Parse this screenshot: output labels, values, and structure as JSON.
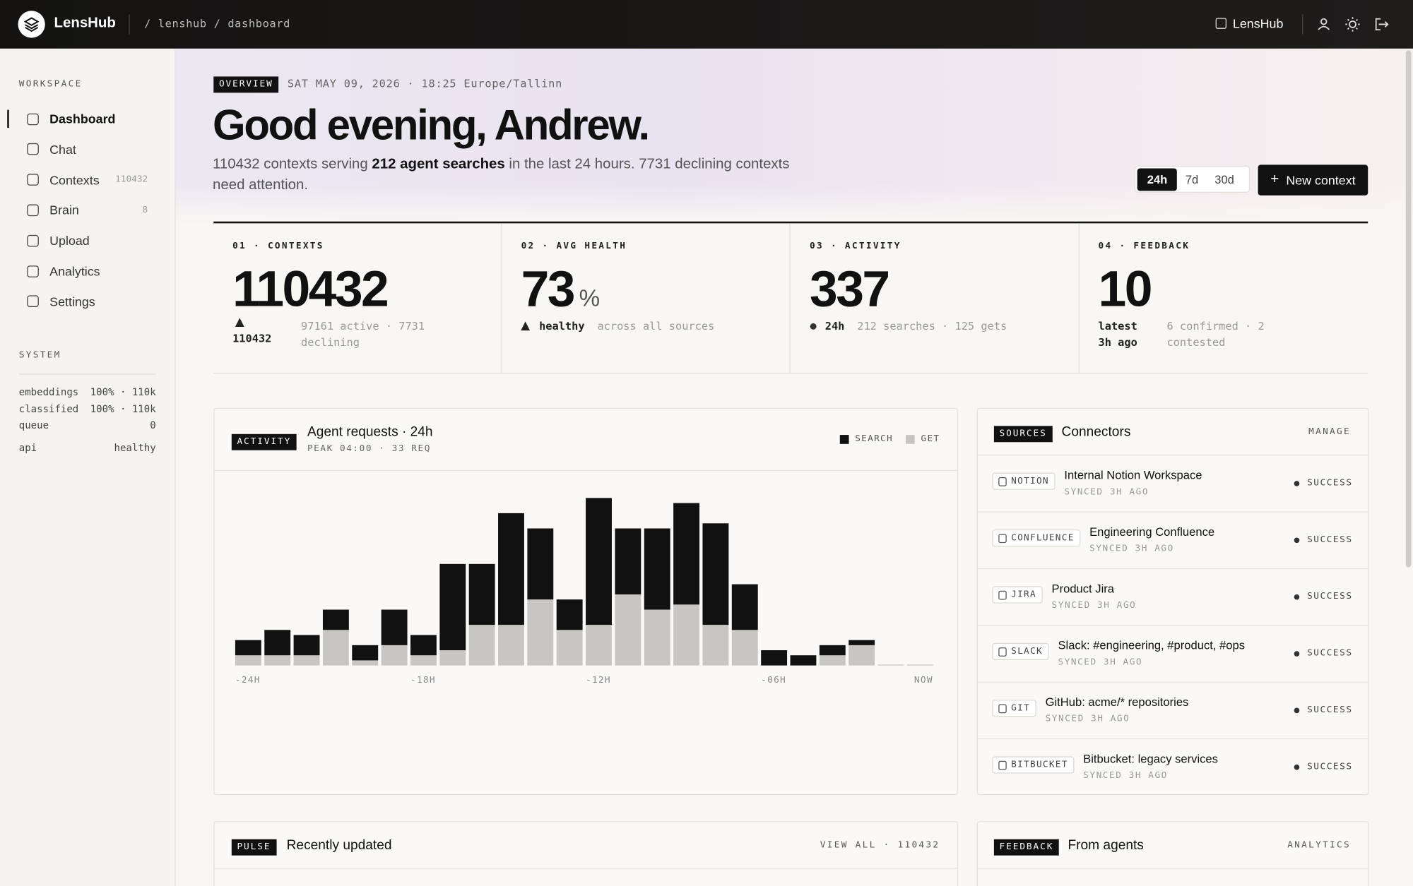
{
  "header": {
    "brand": "LensHub",
    "breadcrumb": "/ lenshub / dashboard",
    "workspace": "LensHub"
  },
  "sidebar": {
    "workspace_label": "WORKSPACE",
    "nav": [
      {
        "label": "Dashboard"
      },
      {
        "label": "Chat"
      },
      {
        "label": "Contexts",
        "badge": "110432"
      },
      {
        "label": "Brain",
        "badge": "8"
      },
      {
        "label": "Upload"
      },
      {
        "label": "Analytics"
      },
      {
        "label": "Settings"
      }
    ],
    "system_label": "SYSTEM",
    "system": [
      [
        "embeddings",
        "100% · 110k"
      ],
      [
        "classified",
        "100% · 110k"
      ],
      [
        "queue",
        "0"
      ],
      [
        "api",
        "healthy"
      ]
    ]
  },
  "overview": {
    "tag": "OVERVIEW",
    "timestamp": "SAT MAY 09, 2026 · 18:25 Europe/Tallinn",
    "greeting": "Good evening, Andrew.",
    "intro_pre": "110432 contexts serving ",
    "intro_bold": "212 agent searches",
    "intro_post": " in the last 24 hours. 7731 declining contexts need attention.",
    "ranges": [
      "24h",
      "7d",
      "30d"
    ],
    "action": "New context"
  },
  "stats": [
    {
      "label": "01 · CONTEXTS",
      "value": "110432",
      "note": "110432",
      "detail": "97161 active · 7731 declining"
    },
    {
      "label": "02 · AVG HEALTH",
      "value": "73",
      "unit": "%",
      "note": "healthy",
      "detail": "across all sources"
    },
    {
      "label": "03 · ACTIVITY",
      "value": "337",
      "note": "24h",
      "detail": "212 searches · 125 gets"
    },
    {
      "label": "04 · FEEDBACK",
      "value": "10",
      "note": "latest 3h ago",
      "detail": "6 confirmed · 2 contested"
    }
  ],
  "activity": {
    "tag": "ACTIVITY",
    "title": "Agent requests · 24h",
    "subtitle": "PEAK 04:00 · 33 REQ"
  },
  "chart_data": {
    "type": "bar",
    "stacked": true,
    "categories": [
      "-24H",
      null,
      null,
      null,
      null,
      null,
      "-18H",
      null,
      null,
      null,
      null,
      null,
      "-12H",
      null,
      null,
      null,
      null,
      null,
      "-06H",
      null,
      null,
      null,
      null,
      "NOW"
    ],
    "series": [
      {
        "name": "SEARCH",
        "color": "#111111",
        "values": [
          3,
          5,
          4,
          4,
          3,
          7,
          4,
          17,
          12,
          22,
          14,
          6,
          25,
          13,
          16,
          20,
          20,
          9,
          3,
          2,
          2,
          1,
          0,
          0
        ]
      },
      {
        "name": "GET",
        "color": "#c8c6c2",
        "values": [
          2,
          2,
          2,
          7,
          1,
          4,
          2,
          3,
          8,
          8,
          13,
          7,
          8,
          14,
          11,
          12,
          8,
          7,
          0,
          0,
          2,
          4,
          0,
          0
        ]
      }
    ]
  },
  "connectors": {
    "tag": "SOURCES",
    "title": "Connectors",
    "action": "MANAGE",
    "items": [
      {
        "kind": "NOTION",
        "name": "Internal Notion Workspace",
        "synced": "SYNCED 3H AGO",
        "status": "SUCCESS"
      },
      {
        "kind": "CONFLUENCE",
        "name": "Engineering Confluence",
        "synced": "SYNCED 3H AGO",
        "status": "SUCCESS"
      },
      {
        "kind": "JIRA",
        "name": "Product Jira",
        "synced": "SYNCED 3H AGO",
        "status": "SUCCESS"
      },
      {
        "kind": "SLACK",
        "name": "Slack: #engineering, #product, #ops",
        "synced": "SYNCED 3H AGO",
        "status": "SUCCESS"
      },
      {
        "kind": "GIT",
        "name": "GitHub: acme/* repositories",
        "synced": "SYNCED 3H AGO",
        "status": "SUCCESS"
      },
      {
        "kind": "BITBUCKET",
        "name": "Bitbucket: legacy services",
        "synced": "SYNCED 3H AGO",
        "status": "SUCCESS"
      }
    ]
  },
  "pulse": {
    "tag": "PULSE",
    "title": "Recently updated",
    "action": "VIEW ALL · 110432"
  },
  "feedback": {
    "tag": "FEEDBACK",
    "title": "From agents",
    "action": "ANALYTICS"
  }
}
